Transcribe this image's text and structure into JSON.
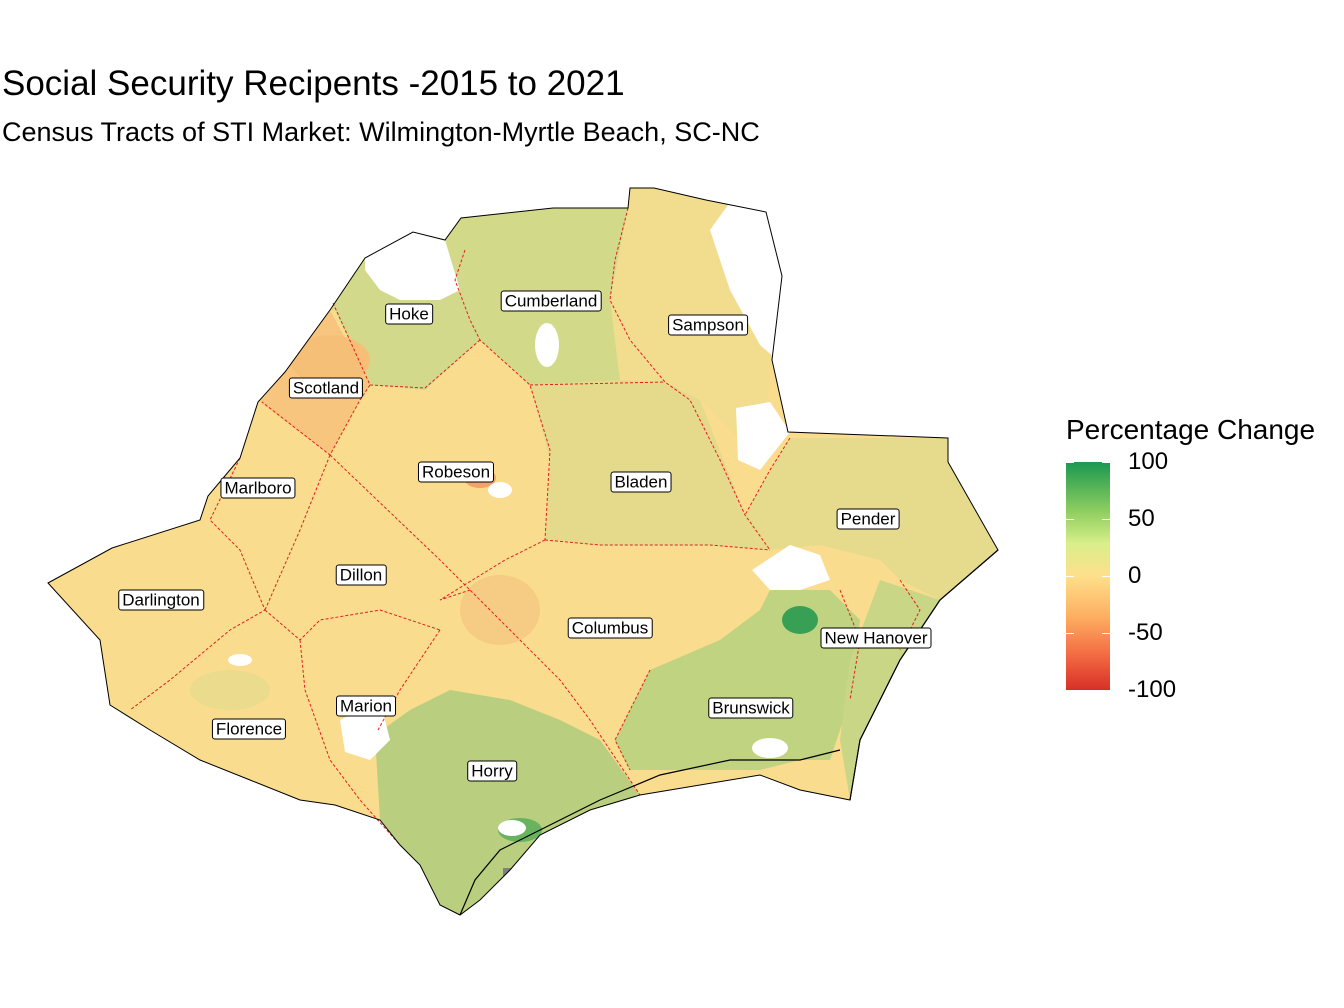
{
  "title": "Social Security Recipents -2015 to 2021",
  "subtitle": "Census Tracts of STI Market: Wilmington-Myrtle Beach, SC-NC",
  "legend": {
    "title": "Percentage Change",
    "ticks": [
      "100",
      "50",
      "0",
      "-50",
      "-100"
    ],
    "tick_values": [
      100,
      50,
      0,
      -50,
      -100
    ],
    "range": [
      -100,
      100
    ],
    "colors": {
      "high": "#1a9850",
      "mid_high": "#91cf60",
      "mid": "#fee08b",
      "mid_low": "#fdae61",
      "low": "#d73027"
    }
  },
  "counties": [
    {
      "name": "Hoke",
      "change": 25
    },
    {
      "name": "Cumberland",
      "change": 30
    },
    {
      "name": "Sampson",
      "change": 10
    },
    {
      "name": "Scotland",
      "change": -15
    },
    {
      "name": "Robeson",
      "change": 2
    },
    {
      "name": "Bladen",
      "change": 12
    },
    {
      "name": "Marlboro",
      "change": 5
    },
    {
      "name": "Pender",
      "change": 20
    },
    {
      "name": "Dillon",
      "change": 3
    },
    {
      "name": "Darlington",
      "change": 5
    },
    {
      "name": "Columbus",
      "change": 0
    },
    {
      "name": "New Hanover",
      "change": 35
    },
    {
      "name": "Marion",
      "change": 3
    },
    {
      "name": "Florence",
      "change": 5
    },
    {
      "name": "Brunswick",
      "change": 40
    },
    {
      "name": "Horry",
      "change": 45
    }
  ],
  "colors": {
    "county_border": "#e02020",
    "outline": "#000000",
    "missing": "#ffffff",
    "no_data_small": "#808080"
  }
}
